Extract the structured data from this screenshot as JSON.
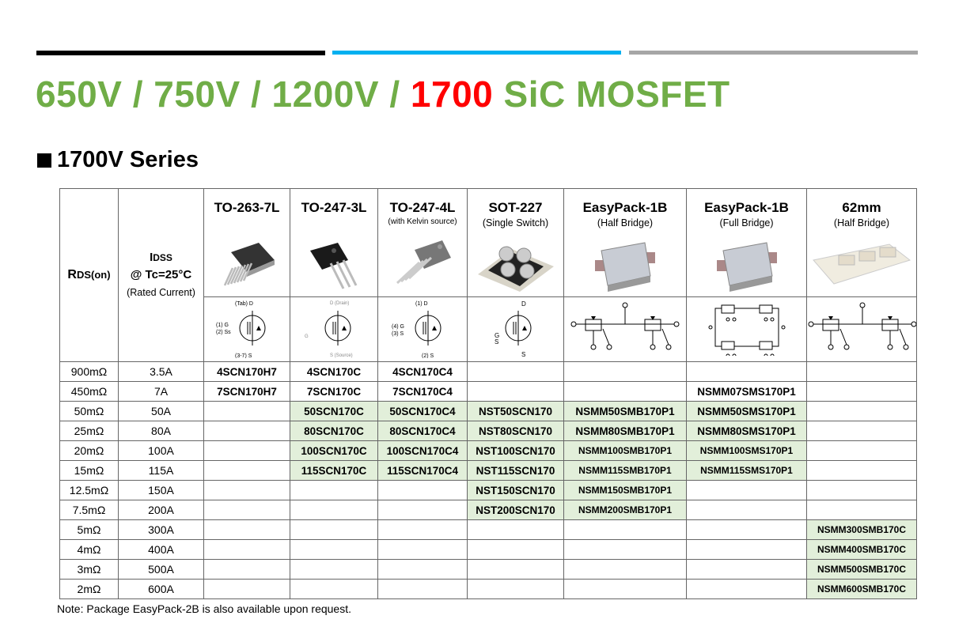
{
  "header": {
    "title_green": "650V / 750V / 1200V / ",
    "title_red": "1700",
    "title_tail": " SiC MOSFET",
    "series_label": "1700V Series",
    "colors": {
      "title_green": "#70ad47",
      "title_red": "#ff0000",
      "bar_black": "#000000",
      "bar_blue": "#00b0f0",
      "bar_gray": "#a6a6a6",
      "cell_green": "#e2efda"
    }
  },
  "table": {
    "rds_label": "R",
    "rds_sub": "DS(on)",
    "idss_label": "I",
    "idss_sub": "DSS",
    "idss_cond": "@ Tc=25°C",
    "idss_note": "(Rated Current)",
    "packages": [
      {
        "name": "TO-263-7L",
        "sub": ""
      },
      {
        "name": "TO-247-3L",
        "sub": ""
      },
      {
        "name": "TO-247-4L",
        "sub": "(with Kelvin source)"
      },
      {
        "name": "SOT-227",
        "sub": "(Single Switch)"
      },
      {
        "name": "EasyPack-1B",
        "sub": "(Half Bridge)"
      },
      {
        "name": "EasyPack-1B",
        "sub": "(Full Bridge)"
      },
      {
        "name": "62mm",
        "sub": "(Half Bridge)"
      }
    ],
    "rows": [
      {
        "rds": "900mΩ",
        "idss": "3.5A",
        "parts": [
          "4SCN170H7",
          "4SCN170C",
          "4SCN170C4",
          "",
          "",
          "",
          ""
        ]
      },
      {
        "rds": "450mΩ",
        "idss": "7A",
        "parts": [
          "7SCN170H7",
          "7SCN170C",
          "7SCN170C4",
          "",
          "",
          "NSMM07SMS170P1",
          ""
        ]
      },
      {
        "rds": "50mΩ",
        "idss": "50A",
        "parts": [
          "",
          "50SCN170C",
          "50SCN170C4",
          "NST50SCN170",
          "NSMM50SMB170P1",
          "NSMM50SMS170P1",
          ""
        ]
      },
      {
        "rds": "25mΩ",
        "idss": "80A",
        "parts": [
          "",
          "80SCN170C",
          "80SCN170C4",
          "NST80SCN170",
          "NSMM80SMB170P1",
          "NSMM80SMS170P1",
          ""
        ]
      },
      {
        "rds": "20mΩ",
        "idss": "100A",
        "parts": [
          "",
          "100SCN170C",
          "100SCN170C4",
          "NST100SCN170",
          "NSMM100SMB170P1",
          "NSMM100SMS170P1",
          ""
        ]
      },
      {
        "rds": "15mΩ",
        "idss": "115A",
        "parts": [
          "",
          "115SCN170C",
          "115SCN170C4",
          "NST115SCN170",
          "NSMM115SMB170P1",
          "NSMM115SMS170P1",
          ""
        ]
      },
      {
        "rds": "12.5mΩ",
        "idss": "150A",
        "parts": [
          "",
          "",
          "",
          "NST150SCN170",
          "NSMM150SMB170P1",
          "",
          ""
        ]
      },
      {
        "rds": "7.5mΩ",
        "idss": "200A",
        "parts": [
          "",
          "",
          "",
          "NST200SCN170",
          "NSMM200SMB170P1",
          "",
          ""
        ]
      },
      {
        "rds": "5mΩ",
        "idss": "300A",
        "parts": [
          "",
          "",
          "",
          "",
          "",
          "",
          "NSMM300SMB170C"
        ]
      },
      {
        "rds": "4mΩ",
        "idss": "400A",
        "parts": [
          "",
          "",
          "",
          "",
          "",
          "",
          "NSMM400SMB170C"
        ]
      },
      {
        "rds": "3mΩ",
        "idss": "500A",
        "parts": [
          "",
          "",
          "",
          "",
          "",
          "",
          "NSMM500SMB170C"
        ]
      },
      {
        "rds": "2mΩ",
        "idss": "600A",
        "parts": [
          "",
          "",
          "",
          "",
          "",
          "",
          "NSMM600SMB170C"
        ]
      }
    ]
  },
  "note": "Note: Package EasyPack-2B is also available upon request."
}
